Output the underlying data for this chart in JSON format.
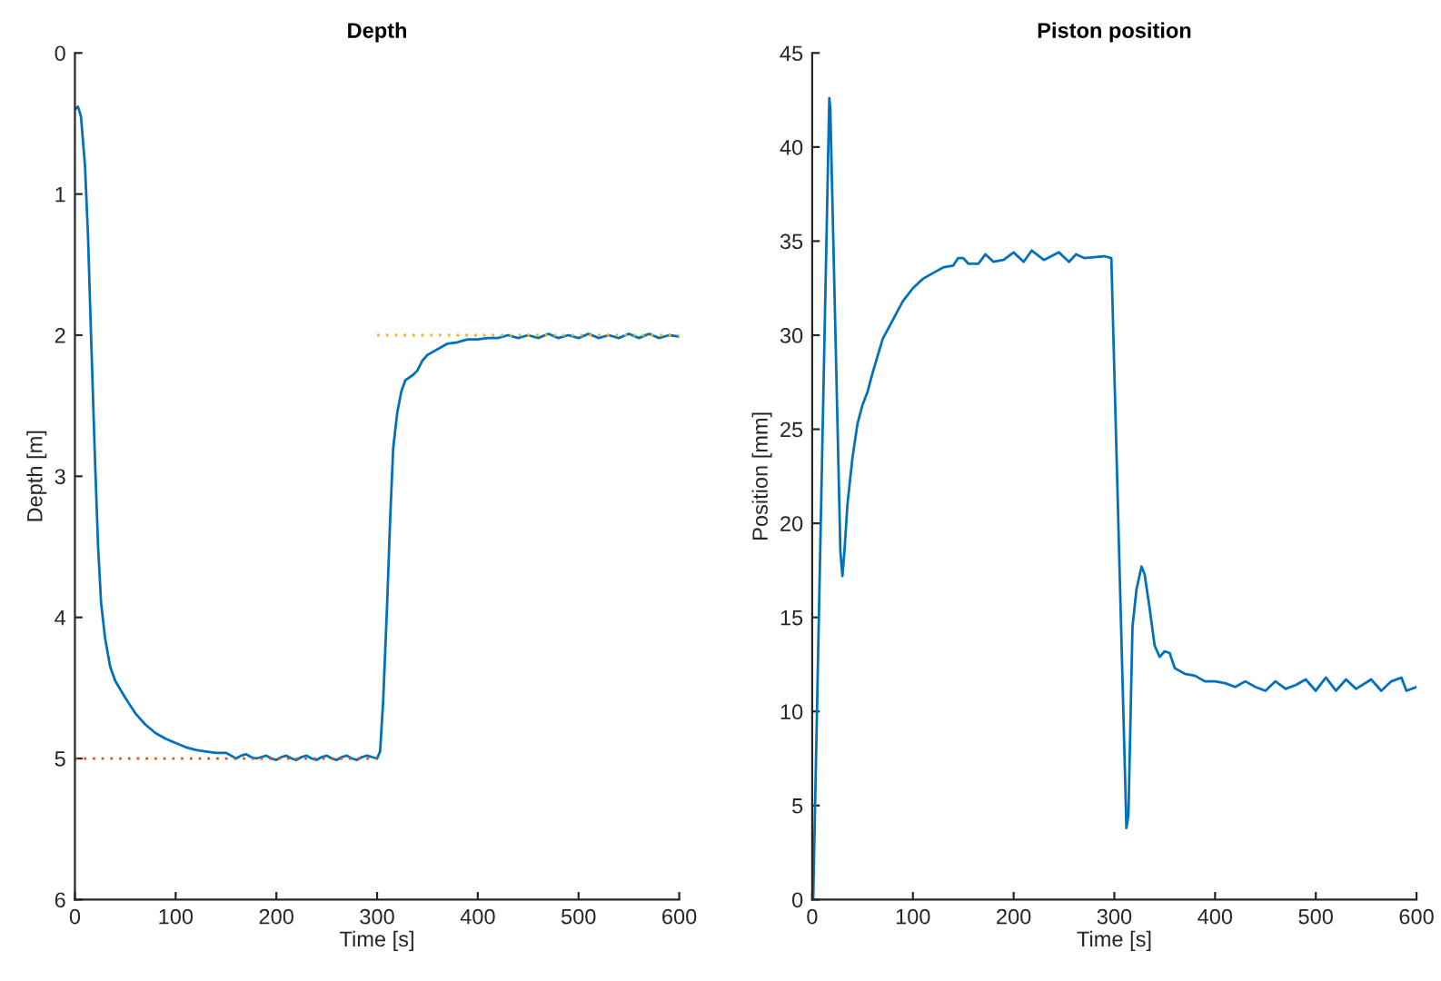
{
  "chart_data": [
    {
      "type": "line",
      "title": "Depth",
      "xlabel": "Time [s]",
      "ylabel": "Depth [m]",
      "xlim": [
        0,
        600
      ],
      "ylim": [
        6,
        0
      ],
      "xticks": [
        0,
        100,
        200,
        300,
        400,
        500,
        600
      ],
      "yticks": [
        0,
        1,
        2,
        3,
        4,
        5,
        6
      ],
      "grid": false,
      "series": [
        {
          "color": "#0072bd",
          "x": [
            0,
            3,
            6,
            10,
            13,
            16,
            20,
            23,
            26,
            30,
            35,
            40,
            50,
            60,
            70,
            80,
            90,
            100,
            110,
            120,
            130,
            140,
            150,
            155,
            160,
            165,
            170,
            175,
            180,
            185,
            190,
            195,
            200,
            205,
            210,
            215,
            220,
            225,
            230,
            235,
            240,
            245,
            250,
            255,
            260,
            265,
            270,
            275,
            280,
            285,
            290,
            295,
            300,
            303,
            306,
            310,
            313,
            316,
            320,
            324,
            328,
            332,
            336,
            340,
            345,
            350,
            355,
            360,
            370,
            380,
            390,
            400,
            410,
            420,
            430,
            440,
            450,
            460,
            470,
            480,
            490,
            500,
            510,
            520,
            530,
            540,
            550,
            560,
            570,
            580,
            590,
            600
          ],
          "values": [
            0.4,
            0.38,
            0.45,
            0.8,
            1.3,
            2.0,
            2.9,
            3.5,
            3.9,
            4.15,
            4.35,
            4.45,
            4.57,
            4.68,
            4.76,
            4.82,
            4.86,
            4.89,
            4.92,
            4.94,
            4.95,
            4.96,
            4.96,
            4.98,
            5.0,
            4.98,
            4.97,
            4.99,
            5.0,
            4.99,
            4.98,
            5.0,
            5.01,
            4.99,
            4.98,
            5.0,
            5.01,
            4.99,
            4.98,
            5.0,
            5.01,
            4.99,
            4.98,
            5.0,
            5.01,
            4.99,
            4.98,
            5.0,
            5.01,
            4.99,
            4.98,
            4.99,
            5.0,
            4.95,
            4.6,
            3.9,
            3.3,
            2.8,
            2.55,
            2.4,
            2.32,
            2.3,
            2.28,
            2.25,
            2.18,
            2.14,
            2.12,
            2.1,
            2.06,
            2.05,
            2.03,
            2.03,
            2.02,
            2.02,
            2.0,
            2.02,
            2.0,
            2.02,
            1.99,
            2.02,
            2.0,
            2.02,
            1.99,
            2.02,
            2.0,
            2.02,
            1.99,
            2.02,
            1.99,
            2.02,
            2.0,
            2.01
          ]
        },
        {
          "color": "#d95319",
          "line_style": "dotted",
          "x": [
            0,
            300
          ],
          "values": [
            5,
            5
          ]
        },
        {
          "color": "#edb120",
          "line_style": "dotted",
          "x": [
            300,
            600
          ],
          "values": [
            2,
            2
          ]
        }
      ]
    },
    {
      "type": "line",
      "title": "Piston position",
      "xlabel": "Time [s]",
      "ylabel": "Position [mm]",
      "xlim": [
        0,
        600
      ],
      "ylim": [
        0,
        45
      ],
      "xticks": [
        0,
        100,
        200,
        300,
        400,
        500,
        600
      ],
      "yticks": [
        0,
        5,
        10,
        15,
        20,
        25,
        30,
        35,
        40,
        45
      ],
      "grid": false,
      "series": [
        {
          "color": "#0072bd",
          "x": [
            0,
            1,
            17,
            18,
            28,
            30,
            32,
            35,
            40,
            45,
            50,
            55,
            60,
            70,
            80,
            90,
            100,
            110,
            120,
            130,
            140,
            145,
            150,
            155,
            165,
            172,
            180,
            190,
            200,
            210,
            218,
            230,
            245,
            255,
            262,
            270,
            290,
            297,
            312,
            314,
            318,
            322,
            327,
            330,
            335,
            340,
            345,
            350,
            355,
            360,
            370,
            380,
            390,
            400,
            410,
            420,
            430,
            440,
            450,
            460,
            470,
            480,
            490,
            500,
            510,
            520,
            530,
            540,
            555,
            565,
            575,
            585,
            590,
            600
          ],
          "values": [
            0,
            0,
            42.6,
            42,
            18.5,
            17.2,
            18.5,
            21,
            23.5,
            25.3,
            26.3,
            27,
            28,
            29.8,
            30.8,
            31.8,
            32.5,
            33,
            33.3,
            33.6,
            33.7,
            34.1,
            34.1,
            33.8,
            33.8,
            34.3,
            33.9,
            34,
            34.4,
            33.9,
            34.5,
            34,
            34.4,
            33.9,
            34.3,
            34.1,
            34.2,
            34.1,
            3.8,
            4.5,
            14.5,
            16.5,
            17.7,
            17.3,
            15.5,
            13.5,
            12.9,
            13.2,
            13.1,
            12.3,
            12,
            11.9,
            11.6,
            11.6,
            11.5,
            11.3,
            11.6,
            11.3,
            11.1,
            11.6,
            11.2,
            11.4,
            11.7,
            11.1,
            11.8,
            11.1,
            11.7,
            11.2,
            11.7,
            11.1,
            11.6,
            11.8,
            11.1,
            11.3
          ]
        }
      ]
    }
  ]
}
